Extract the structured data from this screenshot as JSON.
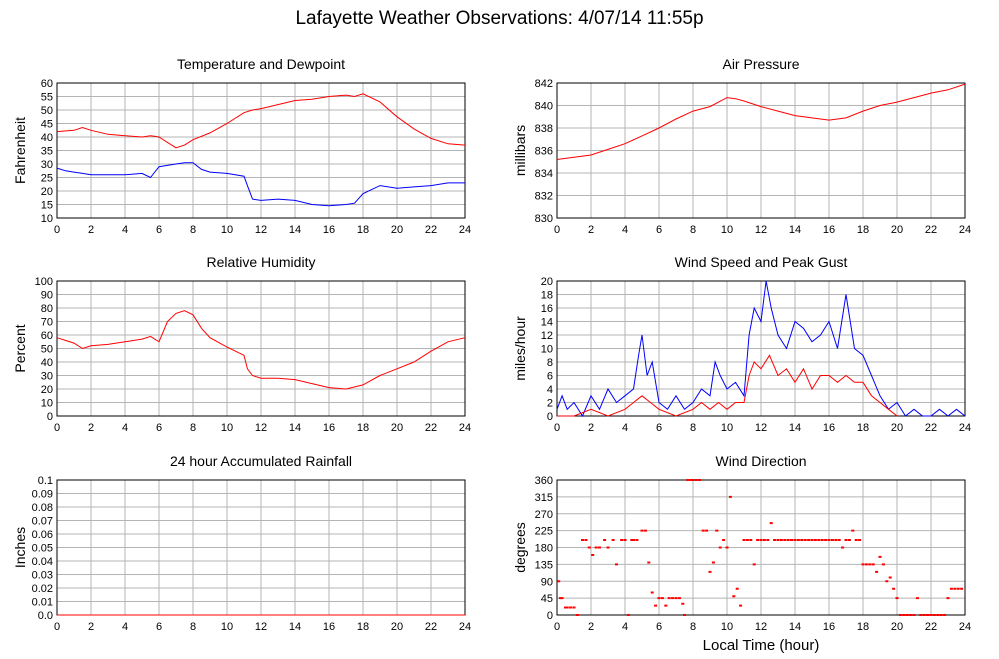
{
  "title": "Lafayette Weather Observations: 4/07/14 11:55p",
  "x_axis_label": "Local Time (hour)",
  "colors": {
    "red": "#ff0000",
    "blue": "#0000ff",
    "grid": "#b4b4b4"
  },
  "chart_data": [
    {
      "type": "line",
      "title": "Temperature and Dewpoint",
      "ylabel": "Fahrenheit",
      "xlim": [
        0,
        24
      ],
      "ylim": [
        10,
        60
      ],
      "xticks": [
        0,
        2,
        4,
        6,
        8,
        10,
        12,
        14,
        16,
        18,
        20,
        22,
        24
      ],
      "yticks": [
        10,
        15,
        20,
        25,
        30,
        35,
        40,
        45,
        50,
        55,
        60
      ],
      "series": [
        {
          "color": "#ff0000",
          "x": [
            0,
            1,
            1.5,
            2,
            3,
            4,
            5,
            5.5,
            6,
            6.5,
            7,
            7.5,
            8,
            9,
            10,
            11,
            11.5,
            12,
            13,
            14,
            15,
            16,
            17,
            17.5,
            18,
            19,
            20,
            21,
            22,
            23,
            24
          ],
          "y": [
            42,
            42.5,
            43.5,
            42.5,
            41,
            40.5,
            40,
            40.5,
            40,
            38,
            36,
            37,
            39,
            41.5,
            45,
            49,
            50,
            50.5,
            52,
            53.5,
            54,
            55,
            55.5,
            55,
            56,
            53,
            47.5,
            43,
            39.5,
            37.5,
            37
          ]
        },
        {
          "color": "#0000ff",
          "x": [
            0,
            0.5,
            1,
            1.5,
            2,
            3,
            4,
            5,
            5.5,
            6,
            7,
            7.5,
            8,
            8.5,
            9,
            10,
            11,
            11.2,
            11.5,
            12,
            13,
            14,
            15,
            16,
            17,
            17.5,
            18,
            19,
            20,
            21,
            22,
            23,
            24
          ],
          "y": [
            28.5,
            27.5,
            27,
            26.5,
            26,
            26,
            26,
            26.5,
            25,
            29,
            30,
            30.5,
            30.5,
            28,
            27,
            26.5,
            25.5,
            22,
            17,
            16.5,
            17,
            16.5,
            15,
            14.5,
            15,
            15.5,
            19,
            22,
            21,
            21.5,
            22,
            23,
            23
          ]
        }
      ]
    },
    {
      "type": "line",
      "title": "Air Pressure",
      "ylabel": "millibars",
      "xlim": [
        0,
        24
      ],
      "ylim": [
        830,
        842
      ],
      "xticks": [
        0,
        2,
        4,
        6,
        8,
        10,
        12,
        14,
        16,
        18,
        20,
        22,
        24
      ],
      "yticks": [
        830,
        832,
        834,
        836,
        838,
        840,
        842
      ],
      "series": [
        {
          "color": "#ff0000",
          "x": [
            0,
            1,
            2,
            3,
            4,
            5,
            6,
            7,
            8,
            9,
            10,
            10.5,
            11,
            12,
            13,
            14,
            15,
            16,
            17,
            18,
            19,
            20,
            21,
            22,
            23,
            24
          ],
          "y": [
            835.2,
            835.4,
            835.6,
            836.1,
            836.6,
            837.3,
            838,
            838.8,
            839.5,
            839.9,
            840.7,
            840.6,
            840.4,
            839.9,
            839.5,
            839.1,
            838.9,
            838.7,
            838.9,
            839.5,
            840,
            840.3,
            840.7,
            841.1,
            841.4,
            841.9
          ]
        }
      ]
    },
    {
      "type": "line",
      "title": "Relative Humidity",
      "ylabel": "Percent",
      "xlim": [
        0,
        24
      ],
      "ylim": [
        0,
        100
      ],
      "xticks": [
        0,
        2,
        4,
        6,
        8,
        10,
        12,
        14,
        16,
        18,
        20,
        22,
        24
      ],
      "yticks": [
        0,
        10,
        20,
        30,
        40,
        50,
        60,
        70,
        80,
        90,
        100
      ],
      "series": [
        {
          "color": "#ff0000",
          "x": [
            0,
            0.5,
            1,
            1.5,
            2,
            3,
            4,
            5,
            5.5,
            6,
            6.5,
            7,
            7.5,
            8,
            8.5,
            9,
            10,
            11,
            11.2,
            11.5,
            12,
            13,
            14,
            15,
            16,
            17,
            18,
            19,
            20,
            21,
            22,
            23,
            24
          ],
          "y": [
            58,
            56,
            54,
            50,
            52,
            53,
            55,
            57,
            59,
            55,
            70,
            76,
            78,
            75,
            65,
            58,
            51,
            45,
            35,
            30,
            28,
            28,
            27,
            24,
            21,
            20,
            23,
            30,
            35,
            40,
            48,
            55,
            58
          ]
        }
      ]
    },
    {
      "type": "line",
      "title": "Wind Speed and Peak Gust",
      "ylabel": "miles/hour",
      "xlim": [
        0,
        24
      ],
      "ylim": [
        0,
        20
      ],
      "xticks": [
        0,
        2,
        4,
        6,
        8,
        10,
        12,
        14,
        16,
        18,
        20,
        22,
        24
      ],
      "yticks": [
        0,
        2,
        4,
        6,
        8,
        10,
        12,
        14,
        16,
        18,
        20
      ],
      "series": [
        {
          "color": "#0000ff",
          "x": [
            0,
            0.3,
            0.6,
            1,
            1.5,
            2,
            2.5,
            3,
            3.5,
            4,
            4.5,
            4.8,
            5,
            5.3,
            5.6,
            6,
            6.5,
            7,
            7.5,
            8,
            8.5,
            9,
            9.3,
            9.6,
            10,
            10.5,
            11,
            11.3,
            11.6,
            12,
            12.3,
            12.6,
            13,
            13.5,
            14,
            14.5,
            15,
            15.5,
            16,
            16.5,
            17,
            17.5,
            18,
            18.5,
            19,
            19.5,
            20,
            20.5,
            21,
            21.5,
            22,
            22.5,
            23,
            23.5,
            24
          ],
          "y": [
            1,
            3,
            1,
            2,
            0,
            3,
            1,
            4,
            2,
            3,
            4,
            9,
            12,
            6,
            8,
            2,
            1,
            3,
            1,
            2,
            4,
            3,
            8,
            6,
            4,
            5,
            3,
            12,
            16,
            14,
            20,
            16,
            12,
            10,
            14,
            13,
            11,
            12,
            14,
            10,
            18,
            10,
            9,
            6,
            3,
            1,
            2,
            0,
            1,
            0,
            0,
            1,
            0,
            1,
            0
          ]
        },
        {
          "color": "#ff0000",
          "x": [
            0,
            1,
            2,
            3,
            4,
            4.5,
            5,
            5.5,
            6,
            7,
            8,
            8.5,
            9,
            9.5,
            10,
            10.5,
            11,
            11.3,
            11.6,
            12,
            12.5,
            13,
            13.5,
            14,
            14.5,
            15,
            15.5,
            16,
            16.5,
            17,
            17.5,
            18,
            18.5,
            19,
            19.5,
            20
          ],
          "y": [
            0,
            0,
            1,
            0,
            1,
            2,
            3,
            2,
            1,
            0,
            1,
            2,
            1,
            2,
            1,
            2,
            2,
            6,
            8,
            7,
            9,
            6,
            7,
            5,
            7,
            4,
            6,
            6,
            5,
            6,
            5,
            5,
            3,
            2,
            1,
            0
          ]
        }
      ]
    },
    {
      "type": "line",
      "title": "24 hour Accumulated Rainfall",
      "ylabel": "Inches",
      "xlim": [
        0,
        24
      ],
      "ylim": [
        0,
        0.1
      ],
      "xticks": [
        0,
        2,
        4,
        6,
        8,
        10,
        12,
        14,
        16,
        18,
        20,
        22,
        24
      ],
      "yticks": [
        0.0,
        0.01,
        0.02,
        0.03,
        0.04,
        0.05,
        0.06,
        0.07,
        0.08,
        0.09,
        0.1
      ],
      "ytick_labels": [
        "0.0",
        "0.01",
        "0.02",
        "0.03",
        "0.04",
        "0.05",
        "0.06",
        "0.07",
        "0.08",
        "0.09",
        "0.1"
      ],
      "series": [
        {
          "color": "#ff0000",
          "x": [
            0,
            24
          ],
          "y": [
            0,
            0
          ]
        }
      ]
    },
    {
      "type": "scatter",
      "title": "Wind Direction",
      "ylabel": "degrees",
      "xlim": [
        0,
        24
      ],
      "ylim": [
        0,
        360
      ],
      "xticks": [
        0,
        2,
        4,
        6,
        8,
        10,
        12,
        14,
        16,
        18,
        20,
        22,
        24
      ],
      "yticks": [
        0,
        45,
        90,
        135,
        180,
        225,
        270,
        315,
        360
      ],
      "series": [
        {
          "color": "#ff0000",
          "x": [
            0.1,
            0.2,
            0.3,
            0.5,
            0.6,
            0.8,
            1.0,
            1.2,
            1.5,
            1.7,
            1.9,
            2.1,
            2.3,
            2.5,
            2.8,
            3.0,
            3.3,
            3.5,
            3.8,
            4.0,
            4.2,
            4.4,
            4.5,
            4.7,
            5.0,
            5.2,
            5.4,
            5.6,
            5.8,
            6.0,
            6.2,
            6.4,
            6.6,
            6.8,
            7.0,
            7.2,
            7.4,
            7.5,
            7.7,
            7.9,
            8.0,
            8.2,
            8.4,
            8.6,
            8.8,
            9.0,
            9.2,
            9.4,
            9.6,
            9.8,
            10.0,
            10.2,
            10.4,
            10.6,
            10.8,
            11.0,
            11.2,
            11.4,
            11.6,
            11.8,
            12.0,
            12.2,
            12.4,
            12.6,
            12.8,
            13.0,
            13.2,
            13.4,
            13.6,
            13.8,
            14.0,
            14.2,
            14.4,
            14.6,
            14.8,
            15.0,
            15.2,
            15.4,
            15.6,
            15.8,
            16.0,
            16.2,
            16.4,
            16.6,
            16.8,
            17.0,
            17.2,
            17.4,
            17.6,
            17.8,
            18.0,
            18.2,
            18.4,
            18.6,
            18.8,
            19.0,
            19.2,
            19.4,
            19.6,
            19.8,
            20.0,
            20.2,
            20.4,
            20.6,
            20.8,
            21.0,
            21.2,
            21.4,
            21.6,
            21.8,
            22.0,
            22.2,
            22.4,
            22.6,
            22.8,
            23.0,
            23.2,
            23.4,
            23.6,
            23.8
          ],
          "y": [
            90,
            45,
            45,
            20,
            20,
            20,
            20,
            0,
            200,
            200,
            180,
            160,
            180,
            180,
            200,
            180,
            200,
            135,
            200,
            200,
            0,
            200,
            200,
            200,
            225,
            225,
            140,
            60,
            25,
            45,
            45,
            25,
            45,
            45,
            45,
            45,
            30,
            0,
            360,
            360,
            360,
            360,
            360,
            225,
            225,
            115,
            140,
            225,
            180,
            200,
            180,
            315,
            50,
            70,
            25,
            200,
            200,
            200,
            135,
            200,
            200,
            200,
            200,
            245,
            200,
            200,
            200,
            200,
            200,
            200,
            200,
            200,
            200,
            200,
            200,
            200,
            200,
            200,
            200,
            200,
            200,
            200,
            200,
            200,
            180,
            200,
            200,
            225,
            200,
            200,
            135,
            135,
            135,
            135,
            115,
            155,
            135,
            90,
            100,
            70,
            45,
            0,
            0,
            0,
            0,
            0,
            45,
            0,
            0,
            0,
            0,
            0,
            0,
            0,
            0,
            45,
            70,
            70,
            70,
            70
          ]
        }
      ]
    }
  ]
}
